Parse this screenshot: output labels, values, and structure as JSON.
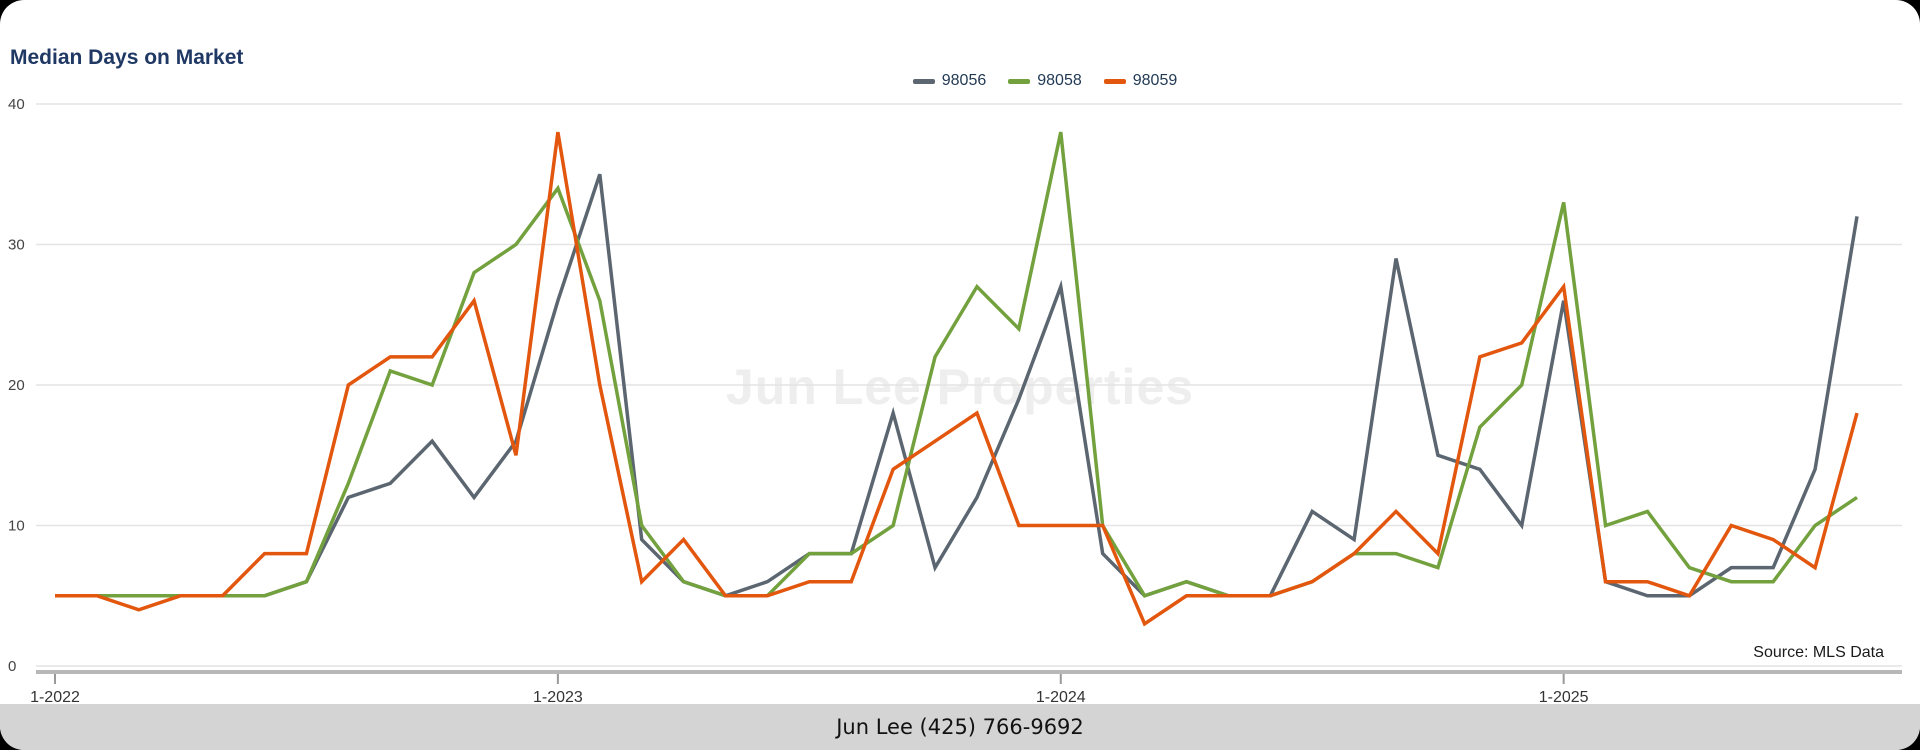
{
  "chart_data": {
    "type": "line",
    "title": "Median Days on Market",
    "xlabel": "",
    "ylabel": "",
    "ylim": [
      0,
      40
    ],
    "y_ticks": [
      0,
      10,
      20,
      30,
      40
    ],
    "grid": "horizontal",
    "legend_position": "top-center",
    "x": [
      "1-2022",
      "2-2022",
      "3-2022",
      "4-2022",
      "5-2022",
      "6-2022",
      "7-2022",
      "8-2022",
      "9-2022",
      "10-2022",
      "11-2022",
      "12-2022",
      "1-2023",
      "2-2023",
      "3-2023",
      "4-2023",
      "5-2023",
      "6-2023",
      "7-2023",
      "8-2023",
      "9-2023",
      "10-2023",
      "11-2023",
      "12-2023",
      "1-2024",
      "2-2024",
      "3-2024",
      "4-2024",
      "5-2024",
      "6-2024",
      "7-2024",
      "8-2024",
      "9-2024",
      "10-2024",
      "11-2024",
      "12-2024",
      "1-2025",
      "2-2025",
      "3-2025",
      "4-2025",
      "5-2025",
      "6-2025",
      "7-2025",
      "8-2025"
    ],
    "x_axis_ticks": [
      "1-2022",
      "1-2023",
      "1-2024",
      "1-2025"
    ],
    "x_tick_indices": [
      0,
      12,
      24,
      36
    ],
    "series": [
      {
        "name": "98056",
        "color": "#5b6670",
        "values": [
          5,
          5,
          5,
          5,
          5,
          5,
          6,
          12,
          13,
          16,
          12,
          16,
          26,
          35,
          9,
          6,
          5,
          6,
          8,
          8,
          18,
          7,
          12,
          19,
          27,
          8,
          5,
          6,
          5,
          5,
          11,
          9,
          29,
          15,
          14,
          10,
          26,
          6,
          5,
          5,
          7,
          7,
          14,
          32
        ]
      },
      {
        "name": "98058",
        "color": "#73a13e",
        "values": [
          5,
          5,
          5,
          5,
          5,
          5,
          6,
          13,
          21,
          20,
          28,
          30,
          34,
          26,
          10,
          6,
          5,
          5,
          8,
          8,
          10,
          22,
          27,
          24,
          38,
          10,
          5,
          6,
          5,
          5,
          6,
          8,
          8,
          7,
          17,
          20,
          33,
          10,
          11,
          7,
          6,
          6,
          10,
          12
        ]
      },
      {
        "name": "98059",
        "color": "#e3560e",
        "values": [
          5,
          5,
          4,
          5,
          5,
          8,
          8,
          20,
          22,
          22,
          26,
          15,
          38,
          20,
          6,
          9,
          5,
          5,
          6,
          6,
          14,
          16,
          18,
          10,
          10,
          10,
          3,
          5,
          5,
          5,
          6,
          8,
          11,
          8,
          22,
          23,
          27,
          6,
          6,
          5,
          10,
          9,
          7,
          18
        ]
      }
    ]
  },
  "annotations": {
    "watermark": "Jun Lee Properties",
    "source": "Source: MLS Data"
  },
  "footer": {
    "contact": "Jun Lee (425) 766-9692"
  },
  "colors": {
    "title": "#1f3864",
    "gridline": "#e4e4e4",
    "axis_line": "#b8b8b8",
    "footer_bg": "#d4d4d4",
    "watermark": "#eeeeee"
  }
}
